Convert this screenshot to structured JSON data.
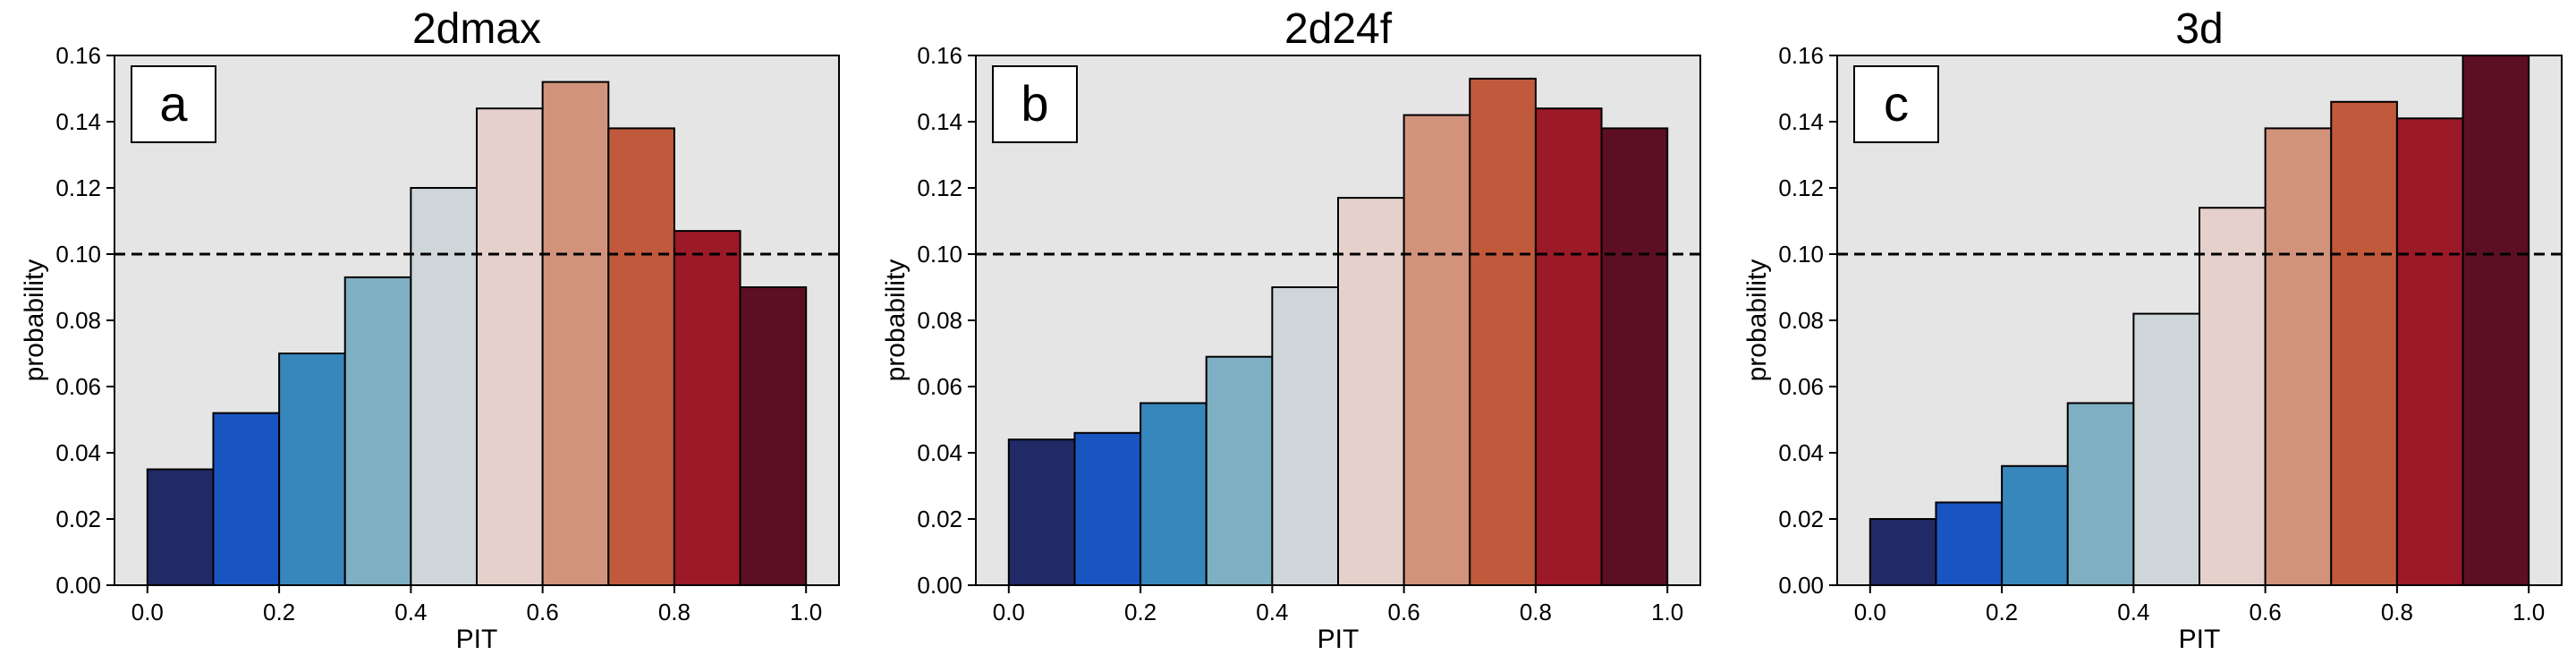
{
  "chart_data": [
    {
      "type": "bar",
      "title": "2dmax",
      "panel_label": "a",
      "xlabel": "PIT",
      "ylabel": "probability",
      "xlim": [
        -0.05,
        1.05
      ],
      "ylim": [
        0.0,
        0.16
      ],
      "x_ticks": [
        "0.0",
        "0.2",
        "0.4",
        "0.6",
        "0.8",
        "1.0"
      ],
      "y_ticks": [
        "0.00",
        "0.02",
        "0.04",
        "0.06",
        "0.08",
        "0.10",
        "0.12",
        "0.14",
        "0.16"
      ],
      "bin_edges": [
        0.0,
        0.1,
        0.2,
        0.3,
        0.4,
        0.5,
        0.6,
        0.7,
        0.8,
        0.9,
        1.0
      ],
      "values": [
        0.035,
        0.052,
        0.07,
        0.093,
        0.12,
        0.144,
        0.152,
        0.138,
        0.107,
        0.09
      ],
      "reference_line": 0.1,
      "grid": false
    },
    {
      "type": "bar",
      "title": "2d24f",
      "panel_label": "b",
      "xlabel": "PIT",
      "ylabel": "probability",
      "xlim": [
        -0.05,
        1.05
      ],
      "ylim": [
        0.0,
        0.16
      ],
      "x_ticks": [
        "0.0",
        "0.2",
        "0.4",
        "0.6",
        "0.8",
        "1.0"
      ],
      "y_ticks": [
        "0.00",
        "0.02",
        "0.04",
        "0.06",
        "0.08",
        "0.10",
        "0.12",
        "0.14",
        "0.16"
      ],
      "bin_edges": [
        0.0,
        0.1,
        0.2,
        0.3,
        0.4,
        0.5,
        0.6,
        0.7,
        0.8,
        0.9,
        1.0
      ],
      "values": [
        0.044,
        0.046,
        0.055,
        0.069,
        0.09,
        0.117,
        0.142,
        0.153,
        0.144,
        0.138
      ],
      "reference_line": 0.1,
      "grid": false
    },
    {
      "type": "bar",
      "title": "3d",
      "panel_label": "c",
      "xlabel": "PIT",
      "ylabel": "probability",
      "xlim": [
        -0.05,
        1.05
      ],
      "ylim": [
        0.0,
        0.16
      ],
      "x_ticks": [
        "0.0",
        "0.2",
        "0.4",
        "0.6",
        "0.8",
        "1.0"
      ],
      "y_ticks": [
        "0.00",
        "0.02",
        "0.04",
        "0.06",
        "0.08",
        "0.10",
        "0.12",
        "0.14",
        "0.16"
      ],
      "bin_edges": [
        0.0,
        0.1,
        0.2,
        0.3,
        0.4,
        0.5,
        0.6,
        0.7,
        0.8,
        0.9,
        1.0
      ],
      "values": [
        0.02,
        0.025,
        0.036,
        0.055,
        0.082,
        0.114,
        0.138,
        0.146,
        0.141,
        0.16
      ],
      "reference_line": 0.1,
      "grid": false
    }
  ],
  "bar_colors": [
    "#212a66",
    "#1955c0",
    "#3787bd",
    "#7fafc2",
    "#cfd6da",
    "#e6d0cb",
    "#d2937d",
    "#c15a3c",
    "#9c1928",
    "#5c0f22"
  ],
  "axes_background": "#e5e5e5",
  "bar_edge_color": "#000000",
  "reference_line_style": "dashed"
}
